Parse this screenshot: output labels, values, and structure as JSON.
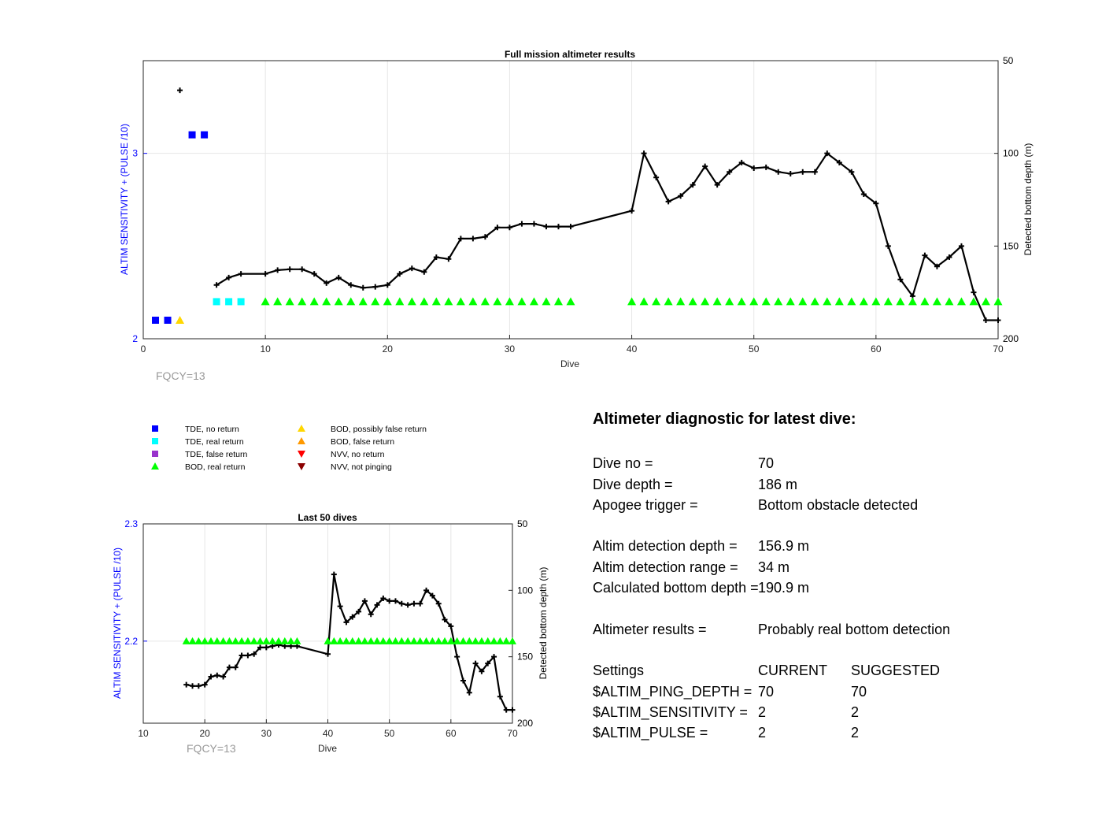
{
  "top_chart": {
    "title": "Full mission altimeter results",
    "xlabel": "Dive",
    "ylabel_left": "ALTIM SENSITIVITY + (PULSE /10)",
    "ylabel_right": "Detected bottom depth (m)",
    "fqcy_label": "FQCY=13",
    "x_ticks": [
      "0",
      "10",
      "20",
      "30",
      "40",
      "50",
      "60",
      "70"
    ],
    "left_ticks": [
      "2",
      "3"
    ],
    "right_ticks": [
      "50",
      "100",
      "150",
      "200"
    ]
  },
  "bottom_chart": {
    "title": "Last 50 dives",
    "xlabel": "Dive",
    "ylabel_left": "ALTIM SENSITIVITY + (PULSE /10)",
    "ylabel_right": "Detected bottom depth (m)",
    "fqcy_label": "FQCY=13",
    "x_ticks": [
      "10",
      "20",
      "30",
      "40",
      "50",
      "60",
      "70"
    ],
    "left_ticks": [
      "2.2",
      "2.3"
    ],
    "right_ticks": [
      "50",
      "100",
      "150",
      "200"
    ]
  },
  "legend": [
    {
      "label": "TDE, no return",
      "marker": "square",
      "color": "#0000ff"
    },
    {
      "label": "TDE, real return",
      "marker": "square",
      "color": "#00ffff"
    },
    {
      "label": "TDE, false return",
      "marker": "square",
      "color": "#9932cc"
    },
    {
      "label": "BOD, real return",
      "marker": "triangle-up",
      "color": "#00ff00"
    },
    {
      "label": "BOD, possibly false return",
      "marker": "triangle-up",
      "color": "#ffd700"
    },
    {
      "label": "BOD, false return",
      "marker": "triangle-up",
      "color": "#ff9900"
    },
    {
      "label": "NVV, no return",
      "marker": "triangle-down",
      "color": "#ff0000"
    },
    {
      "label": "NVV, not pinging",
      "marker": "triangle-down",
      "color": "#8b0000"
    }
  ],
  "diagnostic": {
    "heading": "Altimeter diagnostic for latest dive:",
    "dive_no_label": "Dive no =",
    "dive_no": "70",
    "dive_depth_label": "Dive depth =",
    "dive_depth": "186 m",
    "apogee_label": "Apogee trigger =",
    "apogee": "Bottom obstacle detected",
    "det_depth_label": "Altim detection depth =",
    "det_depth": "156.9 m",
    "det_range_label": "Altim detection range =",
    "det_range": "34 m",
    "calc_depth_label": "Calculated bottom depth =",
    "calc_depth": "190.9 m",
    "results_label": "Altimeter results =",
    "results": "Probably real bottom detection",
    "settings_label": "Settings",
    "current_label": "CURRENT",
    "suggested_label": "SUGGESTED",
    "ping_depth_label": "$ALTIM_PING_DEPTH =",
    "ping_depth_current": "70",
    "ping_depth_suggested": "70",
    "sensitivity_label": "$ALTIM_SENSITIVITY =",
    "sensitivity_current": "2",
    "sensitivity_suggested": "2",
    "pulse_label": "$ALTIM_PULSE =",
    "pulse_current": "2",
    "pulse_suggested": "2"
  },
  "chart_data": [
    {
      "type": "line",
      "title": "Full mission altimeter results",
      "xlabel": "Dive",
      "ylabel": "ALTIM SENSITIVITY + (PULSE /10)",
      "y2label": "Detected bottom depth (m)",
      "xlim": [
        0,
        70
      ],
      "ylim": [
        2,
        3.5
      ],
      "y2lim": [
        50,
        200
      ],
      "y2_reversed": true,
      "grid": true,
      "series": [
        {
          "name": "Detected bottom depth (m)",
          "axis": "right",
          "color": "#000000",
          "marker": "plus",
          "segments": [
            [
              [
                6,
                171
              ],
              [
                7,
                167
              ],
              [
                8,
                165
              ],
              [
                10,
                165
              ],
              [
                11,
                163
              ],
              [
                12,
                162.5
              ],
              [
                13,
                162.5
              ],
              [
                14,
                165
              ],
              [
                15,
                170
              ],
              [
                16,
                167
              ],
              [
                17,
                171
              ],
              [
                18,
                172.5
              ],
              [
                19,
                172
              ],
              [
                20,
                171
              ],
              [
                21,
                165
              ],
              [
                22,
                162
              ],
              [
                23,
                164
              ],
              [
                24,
                156
              ],
              [
                25,
                157
              ],
              [
                26,
                146
              ],
              [
                27,
                146
              ],
              [
                28,
                145
              ],
              [
                29,
                140
              ],
              [
                30,
                140
              ],
              [
                31,
                138
              ],
              [
                32,
                138
              ],
              [
                33,
                139.5
              ],
              [
                34,
                139.5
              ],
              [
                35,
                139.5
              ],
              [
                40,
                131
              ],
              [
                41,
                100
              ],
              [
                42,
                113
              ],
              [
                43,
                126
              ],
              [
                44,
                123
              ],
              [
                45,
                117
              ],
              [
                46,
                107
              ],
              [
                47,
                117
              ],
              [
                48,
                110
              ],
              [
                49,
                105
              ],
              [
                50,
                108
              ],
              [
                51,
                107.5
              ],
              [
                52,
                110
              ],
              [
                53,
                111
              ],
              [
                54,
                110
              ],
              [
                55,
                110
              ],
              [
                56,
                100
              ],
              [
                57,
                105
              ],
              [
                58,
                110
              ],
              [
                59,
                122
              ],
              [
                60,
                127
              ],
              [
                61,
                150
              ],
              [
                62,
                168
              ],
              [
                63,
                177
              ],
              [
                64,
                155
              ],
              [
                65,
                161
              ],
              [
                66,
                156
              ],
              [
                67,
                150
              ],
              [
                68,
                175
              ],
              [
                69,
                190
              ],
              [
                70,
                190
              ]
            ]
          ],
          "outlier": [
            3,
            66
          ]
        },
        {
          "name": "TDE, no return",
          "axis": "left",
          "marker": "square",
          "color": "#0000ff",
          "x": [
            1,
            2,
            4,
            5
          ],
          "y": [
            2.1,
            2.1,
            3.1,
            3.1
          ]
        },
        {
          "name": "TDE, real return",
          "axis": "left",
          "marker": "square",
          "color": "#00ffff",
          "x": [
            6,
            7,
            8
          ],
          "y": [
            2.2,
            2.2,
            2.2
          ]
        },
        {
          "name": "BOD, possibly false return",
          "axis": "left",
          "marker": "triangle-up",
          "color": "#ffd700",
          "x": [
            3
          ],
          "y": [
            2.1
          ]
        },
        {
          "name": "BOD, real return",
          "axis": "left",
          "marker": "triangle-up",
          "color": "#00ff00",
          "x": [
            10,
            11,
            12,
            13,
            14,
            15,
            16,
            17,
            18,
            19,
            20,
            21,
            22,
            23,
            24,
            25,
            26,
            27,
            28,
            29,
            30,
            31,
            32,
            33,
            34,
            35,
            40,
            41,
            42,
            43,
            44,
            45,
            46,
            47,
            48,
            49,
            50,
            51,
            52,
            53,
            54,
            55,
            56,
            57,
            58,
            59,
            60,
            61,
            62,
            63,
            64,
            65,
            66,
            67,
            68,
            69,
            70
          ],
          "y": 2.2
        }
      ]
    },
    {
      "type": "line",
      "title": "Last 50 dives",
      "xlabel": "Dive",
      "ylabel": "ALTIM SENSITIVITY + (PULSE /10)",
      "y2label": "Detected bottom depth (m)",
      "xlim": [
        10,
        70
      ],
      "ylim": [
        2.13,
        2.3
      ],
      "y2lim": [
        50,
        200
      ],
      "y2_reversed": true,
      "grid": true,
      "series": [
        {
          "name": "Detected bottom depth (m)",
          "axis": "right",
          "color": "#000000",
          "marker": "plus",
          "segments": [
            [
              [
                17,
                171
              ],
              [
                18,
                172
              ],
              [
                19,
                172
              ],
              [
                20,
                171
              ],
              [
                21,
                165
              ],
              [
                22,
                164
              ],
              [
                23,
                165
              ],
              [
                24,
                158
              ],
              [
                25,
                158
              ],
              [
                26,
                149
              ],
              [
                27,
                149
              ],
              [
                28,
                148
              ],
              [
                29,
                143
              ],
              [
                30,
                143
              ],
              [
                31,
                142
              ],
              [
                32,
                141
              ],
              [
                33,
                142
              ],
              [
                34,
                142
              ],
              [
                35,
                142
              ],
              [
                40,
                148
              ],
              [
                41,
                88
              ],
              [
                42,
                112
              ],
              [
                43,
                124
              ],
              [
                44,
                120
              ],
              [
                45,
                116
              ],
              [
                46,
                108
              ],
              [
                47,
                118
              ],
              [
                48,
                111
              ],
              [
                49,
                106
              ],
              [
                50,
                108
              ],
              [
                51,
                108
              ],
              [
                52,
                110
              ],
              [
                53,
                111
              ],
              [
                54,
                110
              ],
              [
                55,
                110
              ],
              [
                56,
                100
              ],
              [
                57,
                104
              ],
              [
                58,
                110
              ],
              [
                59,
                122
              ],
              [
                60,
                127
              ],
              [
                61,
                150
              ],
              [
                62,
                168
              ],
              [
                63,
                177
              ],
              [
                64,
                155
              ],
              [
                65,
                161
              ],
              [
                66,
                155
              ],
              [
                67,
                150
              ],
              [
                68,
                180
              ],
              [
                69,
                190
              ],
              [
                70,
                190
              ]
            ]
          ]
        },
        {
          "name": "BOD, real return",
          "axis": "left",
          "marker": "triangle-up",
          "color": "#00ff00",
          "x": [
            17,
            18,
            19,
            20,
            21,
            22,
            23,
            24,
            25,
            26,
            27,
            28,
            29,
            30,
            31,
            32,
            33,
            34,
            35,
            40,
            41,
            42,
            43,
            44,
            45,
            46,
            47,
            48,
            49,
            50,
            51,
            52,
            53,
            54,
            55,
            56,
            57,
            58,
            59,
            60,
            61,
            62,
            63,
            64,
            65,
            66,
            67,
            68,
            69,
            70
          ],
          "y": 2.2
        }
      ]
    }
  ]
}
